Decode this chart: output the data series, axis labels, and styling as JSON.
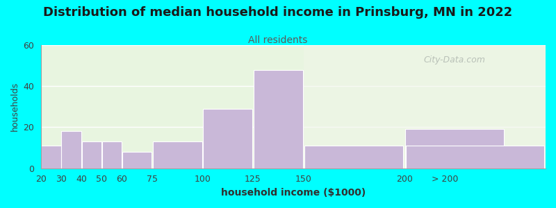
{
  "title": "Distribution of median household income in Prinsburg, MN in 2022",
  "subtitle": "All residents",
  "xlabel": "household income ($1000)",
  "ylabel": "households",
  "background_outer": "#00FFFF",
  "background_inner_left": "#e8f5e0",
  "bar_color": "#c9b8d8",
  "bar_edge_color": "#ffffff",
  "bin_edges": [
    20,
    30,
    40,
    50,
    60,
    75,
    100,
    125,
    150,
    200,
    250
  ],
  "values": [
    11,
    18,
    13,
    13,
    8,
    13,
    29,
    48,
    11,
    19,
    11
  ],
  "last_label": "> 200",
  "tick_positions": [
    20,
    30,
    40,
    50,
    60,
    75,
    100,
    125,
    150,
    200
  ],
  "tick_labels": [
    "20",
    "30",
    "40",
    "50",
    "60",
    "75",
    "100",
    "125",
    "150",
    "200"
  ],
  "ylim": [
    0,
    60
  ],
  "yticks": [
    0,
    20,
    40,
    60
  ],
  "title_fontsize": 13,
  "subtitle_fontsize": 10,
  "subtitle_color": "#5a5a5a",
  "xlabel_fontsize": 10,
  "ylabel_fontsize": 9,
  "watermark_text": "City-Data.com",
  "watermark_color": "#b0b8b0",
  "grid_color": "#ffffff",
  "tick_color": "#404040",
  "xlim_left": 20,
  "xlim_right": 270
}
